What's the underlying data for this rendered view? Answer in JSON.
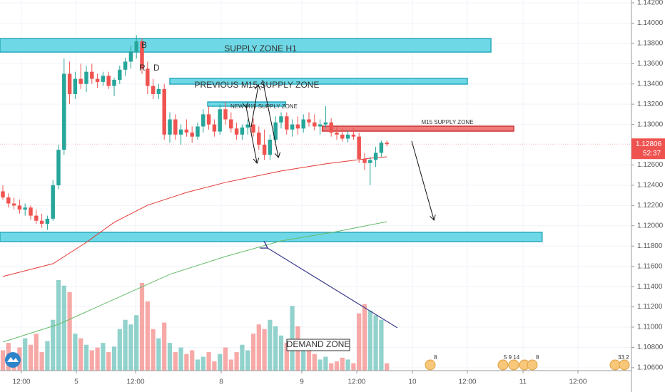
{
  "chart_data": {
    "type": "candlestick",
    "xlim": [
      -0.513,
      112.95
    ],
    "ylim": [
      1.10571,
      1.14228
    ],
    "xticks": [
      {
        "value": 3.33,
        "label": "12:00"
      },
      {
        "value": 13.2,
        "label": "5"
      },
      {
        "value": 23.85,
        "label": "12:00"
      },
      {
        "value": 39.23,
        "label": "8"
      },
      {
        "value": 53.72,
        "label": "9"
      },
      {
        "value": 63.59,
        "label": "12:00"
      },
      {
        "value": 73.59,
        "label": "10"
      },
      {
        "value": 83.46,
        "label": "12:00"
      },
      {
        "value": 93.46,
        "label": "11"
      },
      {
        "value": 103.33,
        "label": "12:00"
      }
    ],
    "yticks": [
      {
        "value": 1.142,
        "label": "1.14200"
      },
      {
        "value": 1.14,
        "label": "1.14000"
      },
      {
        "value": 1.138,
        "label": "1.13800"
      },
      {
        "value": 1.136,
        "label": "1.13600"
      },
      {
        "value": 1.134,
        "label": "1.13400"
      },
      {
        "value": 1.132,
        "label": "1.13200"
      },
      {
        "value": 1.13,
        "label": "1.13000"
      },
      {
        "value": 1.126,
        "label": "1.12600"
      },
      {
        "value": 1.124,
        "label": "1.12400"
      },
      {
        "value": 1.122,
        "label": "1.12200"
      },
      {
        "value": 1.12,
        "label": "1.12000"
      },
      {
        "value": 1.118,
        "label": "1.11800"
      },
      {
        "value": 1.116,
        "label": "1.11600"
      },
      {
        "value": 1.114,
        "label": "1.11400"
      },
      {
        "value": 1.112,
        "label": "1.11200"
      },
      {
        "value": 1.11,
        "label": "1.11000"
      },
      {
        "value": 1.108,
        "label": "1.10800"
      },
      {
        "value": 1.106,
        "label": "1.10600"
      }
    ],
    "grid": true,
    "up_color": "#26a69a",
    "down_color": "#ef5350",
    "open": [
      1.1234,
      1.1228,
      1.1222,
      1.122,
      1.1216,
      1.1218,
      1.121,
      1.1205,
      1.1202,
      1.1207,
      1.124,
      1.1275,
      1.135,
      1.133,
      1.1345,
      1.134,
      1.1352,
      1.1345,
      1.1342,
      1.1348,
      1.1338,
      1.1344,
      1.1354,
      1.1362,
      1.1372,
      1.1382,
      1.1355,
      1.1338,
      1.133,
      1.1335,
      1.129,
      1.1305,
      1.129,
      1.1295,
      1.1292,
      1.1288,
      1.1298,
      1.131,
      1.13,
      1.1293,
      1.1315,
      1.1305,
      1.1296,
      1.129,
      1.1297,
      1.13,
      1.1292,
      1.128,
      1.127,
      1.1285,
      1.1302,
      1.1308,
      1.1295,
      1.13,
      1.1296,
      1.1305,
      1.1302,
      1.1298,
      1.13,
      1.1302,
      1.1292,
      1.129,
      1.1286,
      1.129,
      1.1288,
      1.1266,
      1.1262,
      1.1265,
      1.1272,
      1.1282
    ],
    "high": [
      1.124,
      1.1232,
      1.1228,
      1.1226,
      1.1222,
      1.122,
      1.1216,
      1.1212,
      1.121,
      1.1245,
      1.128,
      1.1365,
      1.1362,
      1.1352,
      1.136,
      1.1358,
      1.136,
      1.135,
      1.1352,
      1.1352,
      1.1346,
      1.1358,
      1.1366,
      1.1378,
      1.1388,
      1.1385,
      1.1362,
      1.1345,
      1.134,
      1.134,
      1.1312,
      1.131,
      1.13,
      1.1305,
      1.1298,
      1.1302,
      1.1315,
      1.1318,
      1.1305,
      1.132,
      1.1322,
      1.1312,
      1.1302,
      1.13,
      1.1305,
      1.1306,
      1.1298,
      1.1295,
      1.129,
      1.1308,
      1.1312,
      1.1312,
      1.1305,
      1.1308,
      1.131,
      1.1312,
      1.131,
      1.1305,
      1.1318,
      1.1306,
      1.1298,
      1.1296,
      1.1294,
      1.1296,
      1.1292,
      1.1272,
      1.1268,
      1.1278,
      1.1284,
      1.1284
    ],
    "low": [
      1.1226,
      1.1218,
      1.1216,
      1.1212,
      1.121,
      1.1206,
      1.1202,
      1.1198,
      1.1196,
      1.1205,
      1.1236,
      1.127,
      1.132,
      1.1325,
      1.1335,
      1.1332,
      1.134,
      1.1336,
      1.1338,
      1.1335,
      1.1328,
      1.134,
      1.1348,
      1.1355,
      1.1365,
      1.135,
      1.133,
      1.1325,
      1.1325,
      1.1285,
      1.1282,
      1.1285,
      1.128,
      1.1288,
      1.1282,
      1.1285,
      1.1292,
      1.1295,
      1.1288,
      1.129,
      1.13,
      1.1292,
      1.1285,
      1.1285,
      1.129,
      1.1288,
      1.1275,
      1.1265,
      1.1265,
      1.1282,
      1.1296,
      1.129,
      1.1288,
      1.129,
      1.1292,
      1.1298,
      1.1294,
      1.129,
      1.1296,
      1.1288,
      1.1285,
      1.1283,
      1.1282,
      1.1285,
      1.1262,
      1.1255,
      1.124,
      1.1258,
      1.1268,
      1.12785
    ],
    "close": [
      1.1228,
      1.1222,
      1.122,
      1.1216,
      1.1218,
      1.121,
      1.1205,
      1.1202,
      1.1207,
      1.124,
      1.1275,
      1.135,
      1.133,
      1.1345,
      1.134,
      1.1352,
      1.1345,
      1.1342,
      1.1348,
      1.1338,
      1.1344,
      1.1354,
      1.1362,
      1.1372,
      1.1382,
      1.1355,
      1.1338,
      1.133,
      1.1335,
      1.129,
      1.1305,
      1.129,
      1.1295,
      1.1292,
      1.1288,
      1.1298,
      1.131,
      1.13,
      1.1293,
      1.1315,
      1.1305,
      1.1296,
      1.129,
      1.1297,
      1.13,
      1.1292,
      1.128,
      1.127,
      1.1285,
      1.1302,
      1.1308,
      1.1295,
      1.13,
      1.1296,
      1.1305,
      1.1302,
      1.1298,
      1.13,
      1.1302,
      1.1292,
      1.129,
      1.1286,
      1.129,
      1.1288,
      1.1266,
      1.1262,
      1.1265,
      1.1272,
      1.1282,
      1.12806
    ],
    "volume": [
      22,
      30,
      18,
      25,
      35,
      28,
      40,
      20,
      32,
      55,
      98,
      92,
      85,
      40,
      35,
      28,
      22,
      25,
      30,
      20,
      26,
      45,
      55,
      50,
      60,
      95,
      75,
      45,
      35,
      52,
      30,
      20,
      25,
      18,
      22,
      12,
      15,
      20,
      10,
      18,
      25,
      12,
      20,
      28,
      22,
      40,
      50,
      45,
      55,
      48,
      38,
      30,
      70,
      48,
      25,
      28,
      18,
      12,
      15,
      8,
      10,
      14,
      12,
      8,
      62,
      72,
      65,
      60,
      55,
      8
    ],
    "moving_averages": [
      {
        "color": "#e53935",
        "x": [
          0,
          9,
          15,
          20,
          26,
          33,
          40,
          50,
          58,
          66,
          69
        ],
        "values": [
          1.115,
          1.11626,
          1.11837,
          1.12034,
          1.12203,
          1.12329,
          1.12428,
          1.12541,
          1.12611,
          1.12667,
          1.12681
        ]
      },
      {
        "color": "#66bb6a",
        "x": [
          0,
          10,
          20,
          30,
          40,
          50,
          60,
          69
        ],
        "values": [
          1.10853,
          1.11028,
          1.11275,
          1.11521,
          1.11697,
          1.11851,
          1.11943,
          1.12041
        ]
      }
    ],
    "zones": [
      {
        "label": "SUPPLY ZONE H1",
        "x": [
          -0.513,
          87.7
        ],
        "price": [
          1.13714,
          1.13848
        ],
        "color": "#6fd8e6"
      },
      {
        "label": "PREVIOUS M15 SUPPLY ZONE",
        "x": [
          30.0,
          83.46
        ],
        "price": [
          1.13398,
          1.13455
        ],
        "color": "#6fd8e6"
      },
      {
        "label": "NEW M15 SUPPLY ZONE",
        "x": [
          36.8,
          50.8
        ],
        "price": [
          1.1318,
          1.13222
        ],
        "color": "#6fd8e6"
      },
      {
        "label": "M15 SUPPLY ZONE",
        "x": [
          57.4,
          91.8
        ],
        "price": [
          1.12934,
          1.12983
        ],
        "color": "#ef7b7b"
      },
      {
        "x": [
          -0.513,
          96.9
        ],
        "price": [
          1.11844,
          1.11936
        ],
        "color": "#6fd8e6"
      }
    ],
    "annotations": [
      "B",
      "R",
      "D",
      "DEMAND ZONE"
    ],
    "current_price": {
      "value": 1.12806,
      "label": "1.12806"
    },
    "countdown": "52:37",
    "events": [
      "8",
      "5 9 14",
      "8",
      "33 2"
    ]
  }
}
